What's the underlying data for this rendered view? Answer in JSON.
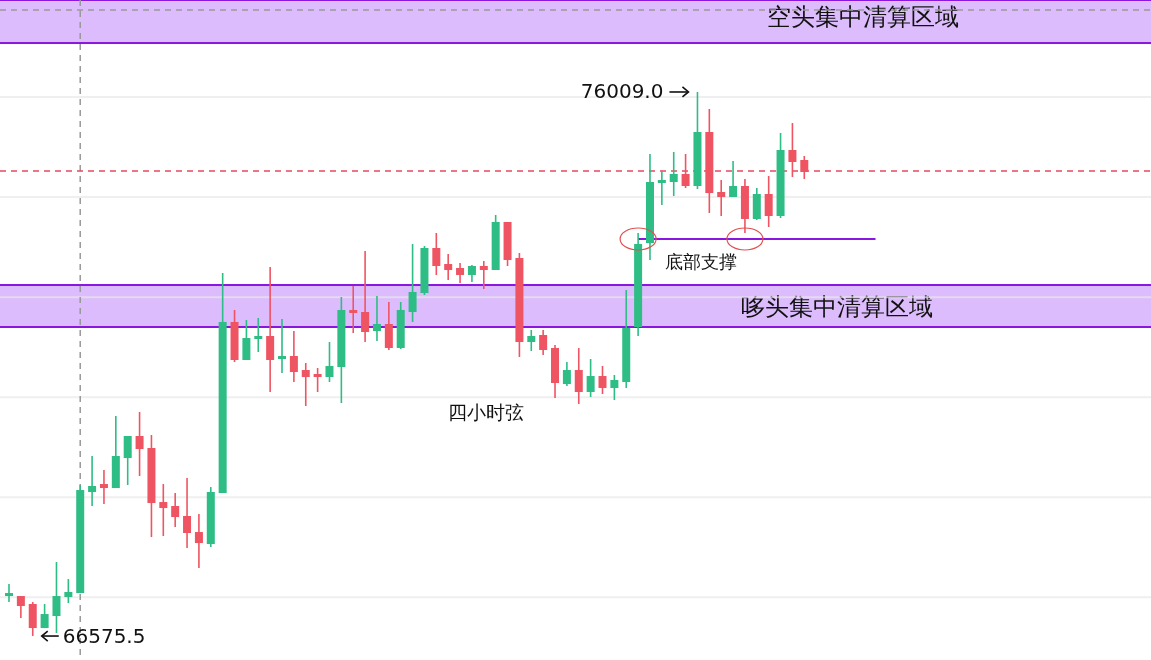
{
  "chart_data": {
    "type": "candlestick",
    "grid": "y",
    "categories": [
      null,
      null,
      null,
      null,
      null,
      null,
      null,
      null,
      null,
      null,
      null,
      null,
      null,
      null,
      null,
      null,
      null,
      null,
      null,
      null,
      null,
      null,
      null,
      null,
      null,
      null,
      null,
      null,
      null,
      null,
      null,
      null,
      null,
      null,
      null,
      null,
      null,
      null,
      null,
      null,
      null,
      null,
      null,
      null,
      null,
      null,
      null,
      null,
      null,
      null,
      null,
      null,
      null,
      null,
      null,
      null,
      null,
      null,
      null,
      null,
      null,
      null,
      null,
      null,
      null,
      null,
      null,
      null,
      null,
      null,
      null,
      null,
      null,
      null,
      null,
      null,
      null,
      null,
      null,
      null,
      null,
      null,
      null,
      null,
      null,
      null,
      null,
      null,
      null,
      null,
      null,
      null,
      null,
      null,
      null,
      null,
      null
    ],
    "ylim": [
      66160,
      77604
    ],
    "yticks": [
      {
        "value": 67247,
        "label": null
      },
      {
        "value": 68981,
        "label": null
      },
      {
        "value": 70715,
        "label": null
      },
      {
        "value": 72450,
        "label": null
      },
      {
        "value": 74188,
        "label": null
      },
      {
        "value": 75922,
        "label": null
      }
    ],
    "ohlc": [
      [
        67269,
        67477,
        67165,
        67321
      ],
      [
        67269,
        67269,
        66888,
        67096
      ],
      [
        67131,
        67165,
        66575.5,
        66714
      ],
      [
        66714,
        67131,
        66714,
        66957
      ],
      [
        66923,
        67859,
        66628,
        67269
      ],
      [
        67252,
        67564,
        67148,
        67339
      ],
      [
        67321,
        69194,
        67321,
        69107
      ],
      [
        69073,
        69697,
        68830,
        69177
      ],
      [
        69211,
        69454,
        68865,
        69142
      ],
      [
        69142,
        70391,
        69142,
        69697
      ],
      [
        69662,
        70044,
        69194,
        70044
      ],
      [
        70044,
        70460,
        69350,
        69818
      ],
      [
        69836,
        70061,
        68292,
        68882
      ],
      [
        68899,
        69211,
        68310,
        68795
      ],
      [
        68830,
        69055,
        68466,
        68639
      ],
      [
        68657,
        69316,
        68102,
        68362
      ],
      [
        68379,
        68691,
        67755,
        68188
      ],
      [
        68171,
        69159,
        68119,
        69073
      ],
      [
        69055,
        72870,
        69055,
        72021
      ],
      [
        72021,
        72229,
        71327,
        71362
      ],
      [
        71362,
        72055,
        71362,
        71743
      ],
      [
        71726,
        72090,
        71500,
        71778
      ],
      [
        71778,
        72974,
        70807,
        71362
      ],
      [
        71379,
        72072,
        71136,
        71431
      ],
      [
        71431,
        71864,
        70980,
        71153
      ],
      [
        71188,
        71310,
        70564,
        71067
      ],
      [
        71119,
        71223,
        70807,
        71067
      ],
      [
        71067,
        71674,
        70980,
        71258
      ],
      [
        71240,
        72454,
        70616,
        72229
      ],
      [
        72229,
        72645,
        71830,
        72177
      ],
      [
        72194,
        73252,
        71674,
        71847
      ],
      [
        71864,
        72471,
        71691,
        71986
      ],
      [
        71986,
        72367,
        71535,
        71570
      ],
      [
        71570,
        72367,
        71552,
        72229
      ],
      [
        72194,
        73373,
        72021,
        72541
      ],
      [
        72523,
        73338,
        72489,
        73304
      ],
      [
        73304,
        73564,
        72836,
        72992
      ],
      [
        73026,
        73200,
        72749,
        72922
      ],
      [
        72957,
        73044,
        72697,
        72836
      ],
      [
        72836,
        73009,
        72714,
        72992
      ],
      [
        72992,
        73078,
        72593,
        72922
      ],
      [
        72922,
        73876,
        72922,
        73755
      ],
      [
        73755,
        73755,
        72992,
        73096
      ],
      [
        73130,
        73217,
        71414,
        71674
      ],
      [
        71674,
        71882,
        71518,
        71778
      ],
      [
        71795,
        71882,
        71448,
        71535
      ],
      [
        71570,
        71622,
        70703,
        70963
      ],
      [
        70945,
        71327,
        70911,
        71188
      ],
      [
        71188,
        71570,
        70599,
        70807
      ],
      [
        70807,
        71379,
        70720,
        71084
      ],
      [
        71084,
        71258,
        70772,
        70876
      ],
      [
        70876,
        71102,
        70668,
        71015
      ],
      [
        70980,
        72575,
        70876,
        71917
      ],
      [
        71934,
        73564,
        71778,
        73373
      ],
      [
        73390,
        74934,
        73096,
        74448
      ],
      [
        74431,
        74639,
        74049,
        74483
      ],
      [
        74448,
        74968,
        74205,
        74587
      ],
      [
        74587,
        74934,
        74344,
        74379
      ],
      [
        74379,
        76009,
        74327,
        75315
      ],
      [
        75315,
        75714,
        73911,
        74257
      ],
      [
        74275,
        74483,
        73859,
        74188
      ],
      [
        74188,
        74812,
        74188,
        74379
      ],
      [
        74379,
        74500,
        73564,
        73807
      ],
      [
        73807,
        74344,
        73789,
        74240
      ],
      [
        74240,
        74552,
        73668,
        73859
      ],
      [
        73859,
        75298,
        73824,
        75003
      ],
      [
        75003,
        75471,
        74535,
        74795
      ],
      [
        74830,
        74899,
        74500,
        74622
      ],
      null,
      null,
      null,
      null,
      null,
      null,
      null,
      null,
      null,
      null,
      null,
      null,
      null,
      null,
      null,
      null,
      null,
      null,
      null,
      null,
      null,
      null,
      null,
      null,
      null,
      null,
      null,
      null,
      null
    ],
    "colors": [
      "#2ebd85",
      "#ef5462",
      "#ef5462",
      "#2ebd85",
      "#2ebd85",
      "#2ebd85",
      "#2ebd85",
      "#2ebd85",
      "#ef5462",
      "#2ebd85",
      "#2ebd85",
      "#ef5462",
      "#ef5462",
      "#ef5462",
      "#ef5462",
      "#ef5462",
      "#ef5462",
      "#2ebd85",
      "#2ebd85",
      "#ef5462",
      "#2ebd85",
      "#2ebd85",
      "#ef5462",
      "#2ebd85",
      "#ef5462",
      "#ef5462",
      "#ef5462",
      "#2ebd85",
      "#2ebd85",
      "#ef5462",
      "#ef5462",
      "#2ebd85",
      "#ef5462",
      "#2ebd85",
      "#2ebd85",
      "#2ebd85",
      "#ef5462",
      "#ef5462",
      "#ef5462",
      "#2ebd85",
      "#ef5462",
      "#2ebd85",
      "#ef5462",
      "#ef5462",
      "#2ebd85",
      "#ef5462",
      "#ef5462",
      "#2ebd85",
      "#ef5462",
      "#2ebd85",
      "#ef5462",
      "#2ebd85",
      "#2ebd85",
      "#2ebd85",
      "#2ebd85",
      "#2ebd85",
      "#2ebd85",
      "#ef5462",
      "#2ebd85",
      "#ef5462",
      "#ef5462",
      "#2ebd85",
      "#ef5462",
      "#2ebd85",
      "#ef5462",
      "#2ebd85",
      "#ef5462",
      "#ef5462",
      null,
      null,
      null,
      null,
      null,
      null,
      null,
      null,
      null,
      null,
      null,
      null,
      null,
      null,
      null,
      null,
      null,
      null,
      null,
      null,
      null,
      null,
      null,
      null,
      null,
      null,
      null,
      null,
      null
    ],
    "series": [
      {
        "type": "line",
        "color": "#8a17e0",
        "values": [
          null,
          null,
          null,
          null,
          null,
          null,
          null,
          null,
          null,
          null,
          null,
          null,
          null,
          null,
          null,
          null,
          null,
          null,
          null,
          null,
          null,
          null,
          null,
          null,
          null,
          null,
          null,
          null,
          null,
          null,
          null,
          null,
          null,
          null,
          null,
          null,
          null,
          null,
          null,
          null,
          null,
          null,
          null,
          null,
          null,
          null,
          null,
          null,
          null,
          null,
          null,
          null,
          null,
          73460,
          73460,
          73460,
          73460,
          73460,
          73460,
          73460,
          73460,
          73460,
          73460,
          73460,
          73460,
          73460,
          73460,
          73460,
          73460,
          73460,
          73460,
          73460,
          73460,
          73460,
          null,
          null,
          null,
          null,
          null,
          null,
          null,
          null,
          null,
          null,
          null,
          null,
          null,
          null,
          null,
          null,
          null,
          null,
          null,
          null,
          null,
          null,
          null
        ]
      }
    ],
    "bands": [
      {
        "axis": "y",
        "from": 76858,
        "to": 77604,
        "label": "空头集中清算区域",
        "color": "#dcbcfc"
      },
      {
        "axis": "y",
        "from": 71934,
        "to": 72662,
        "label": "哆头集中清算区域",
        "color": "#dcbcfc"
      }
    ],
    "ref_lines": [
      {
        "axis": "y",
        "value": 74639,
        "color": "#e84a5f",
        "line_style": "dashed"
      },
      {
        "axis": "y",
        "value": 77431,
        "color": "#999999",
        "line_style": "dashed"
      }
    ],
    "annotations": [
      "76009.0",
      "66575.5",
      {
        "text": "底部支撑",
        "y": 73460
      },
      "四小时弦"
    ]
  }
}
